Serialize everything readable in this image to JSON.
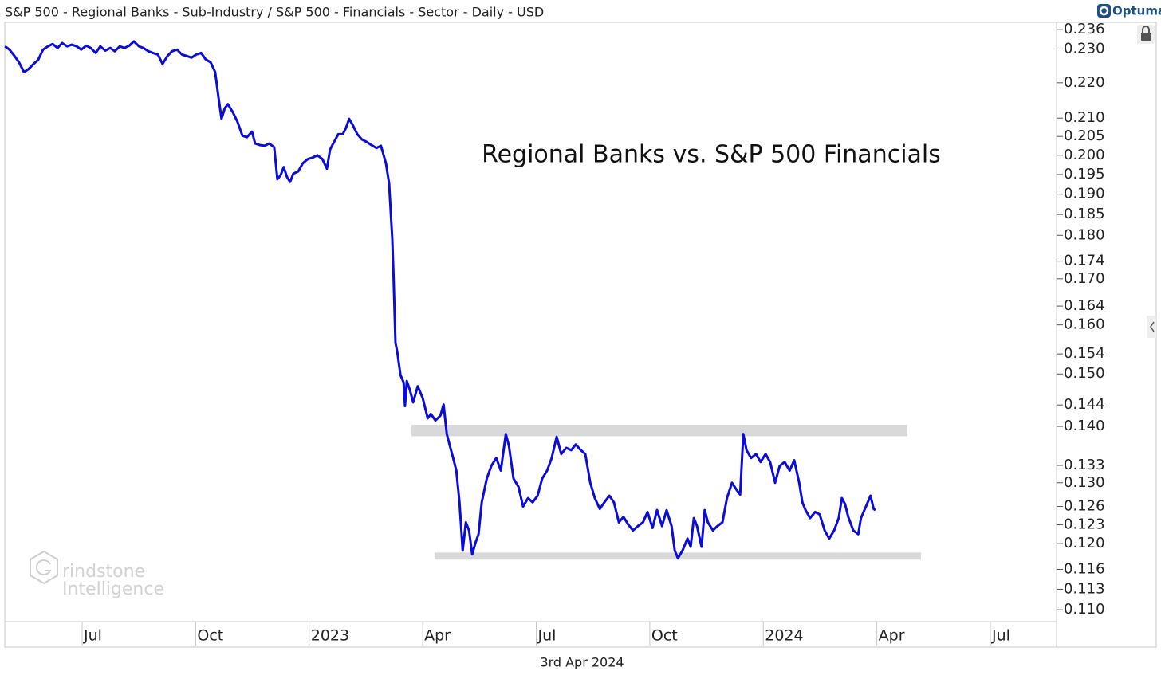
{
  "chart_data": {
    "type": "line",
    "title": "S&P 500 - Regional Banks - Sub-Industry / S&P 500 - Financials - Sector - Daily - USD",
    "logo": "Optuma",
    "annotation": "Regional Banks vs. S&P 500 Financials",
    "watermark": [
      "rindstone",
      "Intelligence"
    ],
    "date_label": "3rd Apr 2024",
    "ylog": true,
    "grid": false,
    "xlim": [
      2022.3297,
      2024.6457
    ],
    "xticks": [
      {
        "value": 2022.5,
        "label": "Jul"
      },
      {
        "value": 2022.75,
        "label": "Oct"
      },
      2023,
      {
        "value": 2023.25,
        "label": "Apr"
      },
      {
        "value": 2023.5,
        "label": "Jul"
      },
      {
        "value": 2023.75,
        "label": "Oct"
      },
      2024,
      {
        "value": 2024.25,
        "label": "Apr"
      },
      {
        "value": 2024.5,
        "label": "Jul"
      }
    ],
    "ylim": [
      0.1083,
      0.2382
    ],
    "yticks": [
      0.236,
      {
        "value": 0.23,
        "label": "0.230"
      },
      {
        "value": 0.22,
        "label": "0.220"
      },
      {
        "value": 0.21,
        "label": "0.210"
      },
      0.205,
      {
        "value": 0.2,
        "label": "0.200"
      },
      0.195,
      {
        "value": 0.19,
        "label": "0.190"
      },
      0.185,
      {
        "value": 0.18,
        "label": "0.180"
      },
      0.174,
      {
        "value": 0.17,
        "label": "0.170"
      },
      0.164,
      {
        "value": 0.16,
        "label": "0.160"
      },
      0.154,
      {
        "value": 0.15,
        "label": "0.150"
      },
      0.144,
      {
        "value": 0.14,
        "label": "0.140"
      },
      0.133,
      {
        "value": 0.13,
        "label": "0.130"
      },
      0.126,
      0.123,
      {
        "value": 0.12,
        "label": "0.120"
      },
      0.116,
      0.113,
      {
        "value": 0.11,
        "label": "0.110"
      }
    ],
    "bands": [
      {
        "x": [
          2023.225,
          2024.317
        ],
        "y": [
          0.1382,
          0.1403
        ],
        "color": "#d9d9d9"
      },
      {
        "x": [
          2023.276,
          2024.347
        ],
        "y": [
          0.1175,
          0.1186
        ],
        "color": "#d9d9d9"
      }
    ],
    "x": [
      2022.33,
      2022.34,
      2022.351,
      2022.361,
      2022.372,
      2022.382,
      2022.393,
      2022.403,
      2022.414,
      2022.425,
      2022.435,
      2022.446,
      2022.456,
      2022.467,
      2022.477,
      2022.488,
      2022.498,
      2022.509,
      2022.519,
      2022.53,
      2022.54,
      2022.551,
      2022.562,
      2022.572,
      2022.583,
      2022.593,
      2022.604,
      2022.614,
      2022.625,
      2022.635,
      2022.646,
      2022.656,
      2022.667,
      2022.677,
      2022.688,
      2022.698,
      2022.709,
      2022.72,
      2022.73,
      2022.741,
      2022.751,
      2022.762,
      2022.772,
      2022.783,
      2022.793,
      2022.8,
      2022.807,
      2022.814,
      2022.821,
      2022.832,
      2022.842,
      2022.853,
      2022.863,
      2022.874,
      2022.881,
      2022.891,
      2022.902,
      2022.912,
      2022.923,
      2022.93,
      2022.937,
      2022.944,
      2022.951,
      2022.958,
      2022.965,
      2022.976,
      2022.986,
      2022.997,
      2023.008,
      2023.018,
      2023.029,
      2023.039,
      2023.046,
      2023.053,
      2023.064,
      2023.074,
      2023.081,
      2023.088,
      2023.095,
      2023.106,
      2023.116,
      2023.127,
      2023.137,
      2023.148,
      2023.158,
      2023.169,
      2023.176,
      2023.183,
      2023.186,
      2023.19,
      2023.194,
      2023.201,
      2023.208,
      2023.211,
      2023.215,
      2023.222,
      2023.229,
      2023.239,
      2023.25,
      2023.261,
      2023.268,
      2023.278,
      2023.289,
      2023.296,
      2023.303,
      2023.31,
      2023.317,
      2023.324,
      2023.331,
      2023.338,
      2023.345,
      2023.352,
      2023.359,
      2023.366,
      2023.373,
      2023.38,
      2023.391,
      2023.401,
      2023.412,
      2023.422,
      2023.433,
      2023.44,
      2023.45,
      2023.461,
      2023.471,
      2023.482,
      2023.492,
      2023.503,
      2023.513,
      2023.524,
      2023.534,
      2023.545,
      2023.555,
      2023.566,
      2023.577,
      2023.587,
      2023.598,
      2023.608,
      2023.619,
      2023.629,
      2023.64,
      2023.65,
      2023.661,
      2023.671,
      2023.682,
      2023.692,
      2023.703,
      2023.713,
      2023.724,
      2023.735,
      2023.745,
      2023.756,
      2023.766,
      2023.777,
      2023.787,
      2023.798,
      2023.805,
      2023.812,
      2023.822,
      2023.833,
      2023.84,
      2023.847,
      2023.854,
      2023.864,
      2023.871,
      2023.878,
      2023.889,
      2023.899,
      2023.91,
      2023.92,
      2023.931,
      2023.942,
      2023.949,
      2023.956,
      2023.963,
      2023.973,
      2023.984,
      2023.994,
      2024.005,
      2024.015,
      2024.026,
      2024.036,
      2024.047,
      2024.058,
      2024.068,
      2024.079,
      2024.086,
      2024.093,
      2024.103,
      2024.114,
      2024.124,
      2024.135,
      2024.145,
      2024.156,
      2024.166,
      2024.173,
      2024.18,
      2024.187,
      2024.198,
      2024.209,
      2024.215,
      2024.226,
      2024.236,
      2024.243,
      2024.247
    ],
    "series": [
      {
        "color": "#0c0cd8",
        "values": [
          0.2308,
          0.2298,
          0.2279,
          0.226,
          0.2231,
          0.224,
          0.2255,
          0.2267,
          0.2298,
          0.2308,
          0.2315,
          0.2303,
          0.2318,
          0.2308,
          0.2313,
          0.2308,
          0.2298,
          0.231,
          0.2303,
          0.2288,
          0.2308,
          0.2295,
          0.2303,
          0.2293,
          0.2308,
          0.2303,
          0.231,
          0.2323,
          0.2308,
          0.2303,
          0.2293,
          0.2288,
          0.2283,
          0.2255,
          0.2279,
          0.2293,
          0.2298,
          0.2283,
          0.2279,
          0.2274,
          0.2283,
          0.2288,
          0.2269,
          0.226,
          0.2231,
          0.2161,
          0.2098,
          0.2127,
          0.2139,
          0.2116,
          0.209,
          0.2052,
          0.2048,
          0.2063,
          0.2031,
          0.2027,
          0.2025,
          0.2031,
          0.2021,
          0.1938,
          0.1948,
          0.1969,
          0.1944,
          0.1931,
          0.1952,
          0.1958,
          0.1979,
          0.199,
          0.1994,
          0.2,
          0.199,
          0.1965,
          0.2015,
          0.2031,
          0.2056,
          0.2056,
          0.2073,
          0.2098,
          0.2083,
          0.2056,
          0.2042,
          0.2035,
          0.2027,
          0.2019,
          0.2025,
          0.1979,
          0.1927,
          0.1791,
          0.1698,
          0.1563,
          0.1544,
          0.1498,
          0.1483,
          0.1438,
          0.1486,
          0.1468,
          0.1445,
          0.1476,
          0.1453,
          0.1415,
          0.1423,
          0.1411,
          0.142,
          0.1441,
          0.1386,
          0.1364,
          0.1343,
          0.1321,
          0.1267,
          0.1189,
          0.1234,
          0.1221,
          0.1183,
          0.1201,
          0.1215,
          0.1267,
          0.1307,
          0.1329,
          0.1343,
          0.1321,
          0.1386,
          0.1364,
          0.1307,
          0.1293,
          0.126,
          0.1274,
          0.1267,
          0.1278,
          0.1307,
          0.1321,
          0.1343,
          0.1381,
          0.135,
          0.1361,
          0.1357,
          0.1367,
          0.1357,
          0.135,
          0.13,
          0.1274,
          0.1256,
          0.1267,
          0.1278,
          0.1267,
          0.1234,
          0.1243,
          0.123,
          0.1221,
          0.1228,
          0.1234,
          0.1251,
          0.1225,
          0.1254,
          0.1228,
          0.1254,
          0.1228,
          0.1189,
          0.1177,
          0.1189,
          0.1208,
          0.1195,
          0.1241,
          0.1228,
          0.1195,
          0.1254,
          0.1234,
          0.1221,
          0.1228,
          0.1234,
          0.1274,
          0.13,
          0.1287,
          0.128,
          0.1386,
          0.1357,
          0.1343,
          0.135,
          0.1336,
          0.135,
          0.1336,
          0.13,
          0.1329,
          0.1336,
          0.1321,
          0.1339,
          0.13,
          0.1267,
          0.1254,
          0.1241,
          0.1251,
          0.1247,
          0.1221,
          0.1208,
          0.1221,
          0.1241,
          0.1274,
          0.1264,
          0.1243,
          0.1221,
          0.1215,
          0.1241,
          0.126,
          0.1278,
          0.1256,
          0.1254
        ]
      }
    ]
  }
}
